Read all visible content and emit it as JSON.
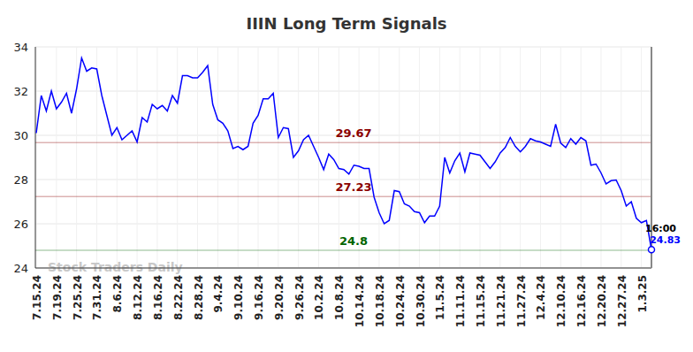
{
  "chart_data": {
    "type": "line",
    "title": "IIIN Long Term Signals",
    "watermark": "Stock Traders Daily",
    "categories": [
      "7.15.24",
      null,
      null,
      null,
      "7.19.24",
      null,
      null,
      null,
      "7.25.24",
      null,
      null,
      null,
      "7.31.24",
      null,
      null,
      null,
      "8.6.24",
      null,
      null,
      null,
      "8.12.24",
      null,
      null,
      null,
      "8.16.24",
      null,
      null,
      null,
      "8.22.24",
      null,
      null,
      null,
      "8.28.24",
      null,
      null,
      null,
      "9.4.24",
      null,
      null,
      null,
      "9.10.24",
      null,
      null,
      null,
      "9.16.24",
      null,
      null,
      null,
      "9.20.24",
      null,
      null,
      null,
      "9.26.24",
      null,
      null,
      null,
      "10.2.24",
      null,
      null,
      null,
      "10.8.24",
      null,
      null,
      null,
      "10.14.24",
      null,
      null,
      null,
      "10.18.24",
      null,
      null,
      null,
      "10.24.24",
      null,
      null,
      null,
      "10.30.24",
      null,
      null,
      null,
      "11.5.24",
      null,
      null,
      null,
      "11.11.24",
      null,
      null,
      null,
      "11.15.24",
      null,
      null,
      null,
      "11.21.24",
      null,
      null,
      null,
      "11.27.24",
      null,
      null,
      null,
      "12.4.24",
      null,
      null,
      null,
      "12.10.24",
      null,
      null,
      null,
      "12.16.24",
      null,
      null,
      null,
      "12.20.24",
      null,
      null,
      null,
      "12.27.24",
      null,
      null,
      null,
      "1.3.25",
      null,
      null
    ],
    "values": [
      30.1,
      31.8,
      31.1,
      32.0,
      31.2,
      31.5,
      31.9,
      31.0,
      32.1,
      33.5,
      32.9,
      33.05,
      33.0,
      31.8,
      30.9,
      30.0,
      30.35,
      29.8,
      30.0,
      30.2,
      29.7,
      30.8,
      30.6,
      31.4,
      31.2,
      31.35,
      31.1,
      31.8,
      31.45,
      32.7,
      32.7,
      32.6,
      32.6,
      32.85,
      33.15,
      31.4,
      30.7,
      30.55,
      30.2,
      29.4,
      29.5,
      29.35,
      29.5,
      30.55,
      30.9,
      31.65,
      31.65,
      31.9,
      29.9,
      30.35,
      30.3,
      29.0,
      29.3,
      29.8,
      30.0,
      29.5,
      29.0,
      28.45,
      29.15,
      28.9,
      28.5,
      28.45,
      28.25,
      28.65,
      28.6,
      28.5,
      28.5,
      27.2,
      26.5,
      26.0,
      26.15,
      27.5,
      27.45,
      26.9,
      26.8,
      26.55,
      26.5,
      26.05,
      26.35,
      26.35,
      26.8,
      29.0,
      28.3,
      28.85,
      29.2,
      28.35,
      29.2,
      29.15,
      29.1,
      28.8,
      28.5,
      28.8,
      29.2,
      29.45,
      29.9,
      29.5,
      29.25,
      29.5,
      29.85,
      29.75,
      29.7,
      29.6,
      29.5,
      30.5,
      29.65,
      29.45,
      29.85,
      29.6,
      29.9,
      29.75,
      28.65,
      28.7,
      28.3,
      27.8,
      27.95,
      27.98,
      27.5,
      26.8,
      27.0,
      26.25,
      26.05,
      26.15,
      24.83
    ],
    "color": "#0000ff",
    "ylim": [
      24,
      34
    ],
    "yticks": [
      24,
      26,
      28,
      30,
      32,
      34
    ],
    "grid": true,
    "reference_lines": [
      {
        "value": 29.67,
        "label": "29.67",
        "color": "#8b0000"
      },
      {
        "value": 27.23,
        "label": "27.23",
        "color": "#8b0000"
      },
      {
        "value": 24.8,
        "label": "24.8",
        "color": "#006400"
      }
    ],
    "last_label": {
      "time": "16:00"
    }
  }
}
